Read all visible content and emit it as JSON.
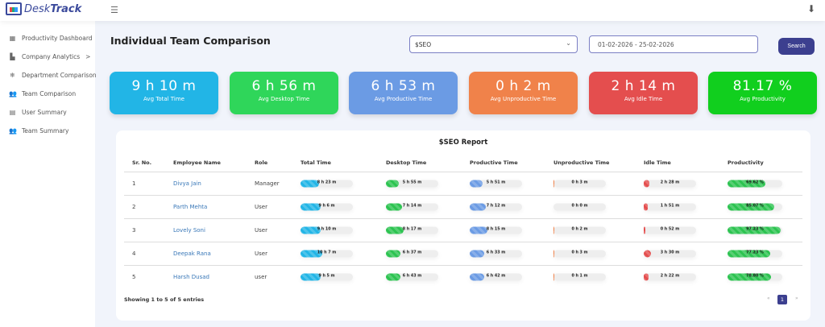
{
  "app": {
    "logo_prefix": "Desk",
    "logo_suffix": "Track"
  },
  "sidebar": {
    "items": [
      {
        "label": "Productivity Dashboard",
        "icon": "grid-icon"
      },
      {
        "label": "Company Analytics",
        "icon": "factory-icon",
        "chevron": ">"
      },
      {
        "label": "Department Comparison",
        "icon": "snowflake-icon"
      },
      {
        "label": "Team Comparison",
        "icon": "users-icon"
      },
      {
        "label": "User Summary",
        "icon": "document-icon"
      },
      {
        "label": "Team Summary",
        "icon": "users-icon"
      }
    ]
  },
  "page": {
    "title": "Individual Team Comparison"
  },
  "filters": {
    "team": "$SEO",
    "date_range": "01-02-2026 - 25-02-2026",
    "search_label": "Search"
  },
  "summary": [
    {
      "value": "9 h 10 m",
      "label": "Avg Total Time",
      "color": "#22b5e6"
    },
    {
      "value": "6 h 56 m",
      "label": "Avg Desktop Time",
      "color": "#2fd65a"
    },
    {
      "value": "6 h 53 m",
      "label": "Avg Productive Time",
      "color": "#6b9be4"
    },
    {
      "value": "0 h 2 m",
      "label": "Avg Unproductive Time",
      "color": "#f0824a"
    },
    {
      "value": "2 h 14 m",
      "label": "Avg Idle Time",
      "color": "#e44e4e"
    },
    {
      "value": "81.17 %",
      "label": "Avg Productivity",
      "color": "#11cf1e"
    }
  ],
  "report": {
    "title": "$SEO Report",
    "columns": [
      "Sr. No.",
      "Employee Name",
      "Role",
      "Total Time",
      "Desktop Time",
      "Productive Time",
      "Unproductive Time",
      "Idle Time",
      "Productivity"
    ],
    "rows": [
      {
        "sr": "1",
        "name": "Divya Jain",
        "role": "Manager",
        "total": "8 h 23 m",
        "desktop": "5 h 55 m",
        "productive": "5 h 51 m",
        "unproductive": "0 h 3 m",
        "idle": "2 h 28 m",
        "productivity": "69.62 %",
        "f": [
          0.349,
          0.247,
          0.244,
          0.002,
          0.103,
          0.6962
        ]
      },
      {
        "sr": "2",
        "name": "Parth Mehta",
        "role": "User",
        "total": "9 h 6 m",
        "desktop": "7 h 14 m",
        "productive": "7 h 12 m",
        "unproductive": "0 h 0 m",
        "idle": "1 h 51 m",
        "productivity": "85.07 %",
        "f": [
          0.379,
          0.301,
          0.3,
          0,
          0.077,
          0.8507
        ]
      },
      {
        "sr": "3",
        "name": "Lovely Soni",
        "role": "User",
        "total": "9 h 10 m",
        "desktop": "8 h 17 m",
        "productive": "8 h 15 m",
        "unproductive": "0 h 2 m",
        "idle": "0 h 52 m",
        "productivity": "97.23 %",
        "f": [
          0.382,
          0.345,
          0.344,
          0.001,
          0.036,
          0.9723
        ]
      },
      {
        "sr": "4",
        "name": "Deepak Rana",
        "role": "User",
        "total": "10 h 7 m",
        "desktop": "6 h 37 m",
        "productive": "6 h 33 m",
        "unproductive": "0 h 3 m",
        "idle": "3 h 30 m",
        "productivity": "77.23 %",
        "f": [
          0.422,
          0.276,
          0.273,
          0.002,
          0.146,
          0.7723
        ]
      },
      {
        "sr": "5",
        "name": "Harsh Dusad",
        "role": "user",
        "total": "9 h 5 m",
        "desktop": "6 h 43 m",
        "productive": "6 h 42 m",
        "unproductive": "0 h 1 m",
        "idle": "2 h 22 m",
        "productivity": "78.80 %",
        "f": [
          0.378,
          0.28,
          0.279,
          0.001,
          0.099,
          0.788
        ]
      }
    ],
    "bar_colors": [
      "#22b5e6",
      "#2cc350",
      "#6b9be4",
      "#f0824a",
      "#e44e4e",
      "#2cc350"
    ],
    "footer": "Showing 1 to 5 of 5 entries",
    "pagination": {
      "prev": "«",
      "current": "1",
      "next": "»"
    }
  }
}
